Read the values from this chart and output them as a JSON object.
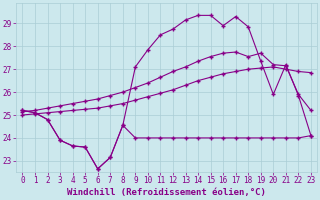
{
  "background_color": "#cce8ed",
  "grid_color": "#aacdd5",
  "line_color": "#880088",
  "xlabel": "Windchill (Refroidissement éolien,°C)",
  "xlabel_fontsize": 6.5,
  "tick_fontsize": 5.5,
  "xlim": [
    -0.5,
    23.5
  ],
  "ylim": [
    22.5,
    29.9
  ],
  "yticks": [
    23,
    24,
    25,
    26,
    27,
    28,
    29
  ],
  "xticks": [
    0,
    1,
    2,
    3,
    4,
    5,
    6,
    7,
    8,
    9,
    10,
    11,
    12,
    13,
    14,
    15,
    16,
    17,
    18,
    19,
    20,
    21,
    22,
    23
  ],
  "series1_x": [
    0,
    1,
    2,
    3,
    4,
    5,
    6,
    7,
    8,
    9,
    10,
    11,
    12,
    13,
    14,
    15,
    16,
    17,
    18,
    19,
    20,
    21,
    22,
    23
  ],
  "series1_y": [
    25.2,
    25.1,
    24.8,
    23.9,
    23.65,
    23.6,
    22.65,
    23.15,
    24.55,
    24.0,
    24.0,
    24.0,
    24.0,
    24.0,
    24.0,
    24.0,
    24.0,
    24.0,
    24.0,
    24.0,
    24.0,
    24.0,
    24.0,
    24.1
  ],
  "series2_x": [
    0,
    1,
    2,
    3,
    4,
    5,
    6,
    7,
    8,
    9,
    10,
    11,
    12,
    13,
    14,
    15,
    16,
    17,
    18,
    19,
    20,
    21,
    22,
    23
  ],
  "series2_y": [
    25.0,
    25.05,
    25.1,
    25.15,
    25.2,
    25.25,
    25.3,
    25.4,
    25.5,
    25.65,
    25.8,
    25.95,
    26.1,
    26.3,
    26.5,
    26.65,
    26.8,
    26.9,
    27.0,
    27.05,
    27.1,
    27.0,
    26.9,
    26.85
  ],
  "series3_x": [
    0,
    1,
    2,
    3,
    4,
    5,
    6,
    7,
    8,
    9,
    10,
    11,
    12,
    13,
    14,
    15,
    16,
    17,
    18,
    19,
    20,
    21,
    22,
    23
  ],
  "series3_y": [
    25.15,
    25.2,
    25.3,
    25.4,
    25.5,
    25.6,
    25.7,
    25.85,
    26.0,
    26.2,
    26.4,
    26.65,
    26.9,
    27.1,
    27.35,
    27.55,
    27.7,
    27.75,
    27.55,
    27.7,
    27.2,
    27.15,
    25.9,
    25.2
  ],
  "series4_x": [
    0,
    1,
    2,
    3,
    4,
    5,
    6,
    7,
    8,
    9,
    10,
    11,
    12,
    13,
    14,
    15,
    16,
    17,
    18,
    19,
    20,
    21,
    22,
    23
  ],
  "series4_y": [
    25.2,
    25.1,
    24.8,
    23.9,
    23.65,
    23.6,
    22.65,
    23.15,
    24.55,
    27.1,
    27.85,
    28.5,
    28.75,
    29.15,
    29.35,
    29.35,
    28.9,
    29.3,
    28.85,
    27.35,
    25.9,
    27.2,
    25.85,
    24.1
  ]
}
